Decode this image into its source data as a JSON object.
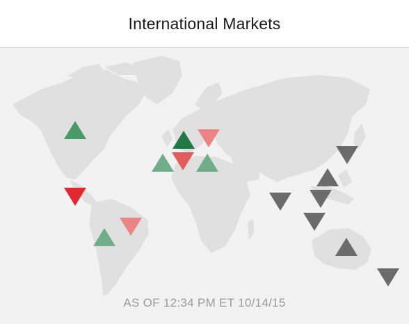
{
  "header": {
    "title": "International Markets"
  },
  "footer": {
    "as_of": "AS OF 12:34 PM ET 10/14/15"
  },
  "colors": {
    "up_strong": "#1f7a45",
    "up": "#4a9a68",
    "up_light": "#6fae88",
    "down_strong": "#e0282e",
    "down": "#e25c5c",
    "down_light": "#eb8484",
    "closed": "#6b6b6b",
    "land": "#e0e0e0",
    "background": "#f2f2f2"
  },
  "markets": [
    {
      "direction": "up",
      "status": "up",
      "region": "north-america"
    },
    {
      "direction": "down",
      "status": "down-strong",
      "region": "mexico"
    },
    {
      "direction": "up",
      "status": "up-light",
      "region": "south-america"
    },
    {
      "direction": "down",
      "status": "down-light",
      "region": "brazil"
    },
    {
      "direction": "up",
      "status": "up-light",
      "region": "uk"
    },
    {
      "direction": "up",
      "status": "up-strong",
      "region": "germany"
    },
    {
      "direction": "down",
      "status": "down-light",
      "region": "scandinavia"
    },
    {
      "direction": "down",
      "status": "down",
      "region": "france"
    },
    {
      "direction": "up",
      "status": "up-light",
      "region": "italy"
    },
    {
      "direction": "down",
      "status": "closed",
      "region": "india"
    },
    {
      "direction": "down",
      "status": "closed",
      "region": "japan"
    },
    {
      "direction": "up",
      "status": "closed",
      "region": "china"
    },
    {
      "direction": "down",
      "status": "closed",
      "region": "hong-kong"
    },
    {
      "direction": "down",
      "status": "closed",
      "region": "singapore"
    },
    {
      "direction": "up",
      "status": "closed",
      "region": "australia"
    },
    {
      "direction": "down",
      "status": "closed",
      "region": "new-zealand"
    }
  ]
}
